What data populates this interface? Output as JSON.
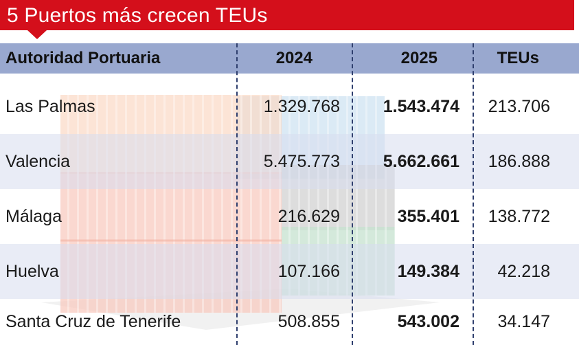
{
  "title": "5 Puertos más crecen TEUs",
  "colors": {
    "title_bg": "#d40f1b",
    "header_bg": "#99a8cf",
    "alt_row_bg": "#d7ddee",
    "divider": "#2f3f6e"
  },
  "chart_data": {
    "type": "table",
    "columns": [
      "Autoridad Portuaria",
      "2024",
      "2025",
      "TEUs"
    ],
    "rows": [
      {
        "port": "Las Palmas",
        "y2024": "1.329.768",
        "y2025": "1.543.474",
        "teus": "213.706"
      },
      {
        "port": "Valencia",
        "y2024": "5.475.773",
        "y2025": "5.662.661",
        "teus": "186.888"
      },
      {
        "port": "Málaga",
        "y2024": "216.629",
        "y2025": "355.401",
        "teus": "138.772"
      },
      {
        "port": "Huelva",
        "y2024": "107.166",
        "y2025": "149.384",
        "teus": "42.218"
      },
      {
        "port": "Santa Cruz de Tenerife",
        "y2024": "508.855",
        "y2025": "543.002",
        "teus": "34.147"
      }
    ]
  }
}
